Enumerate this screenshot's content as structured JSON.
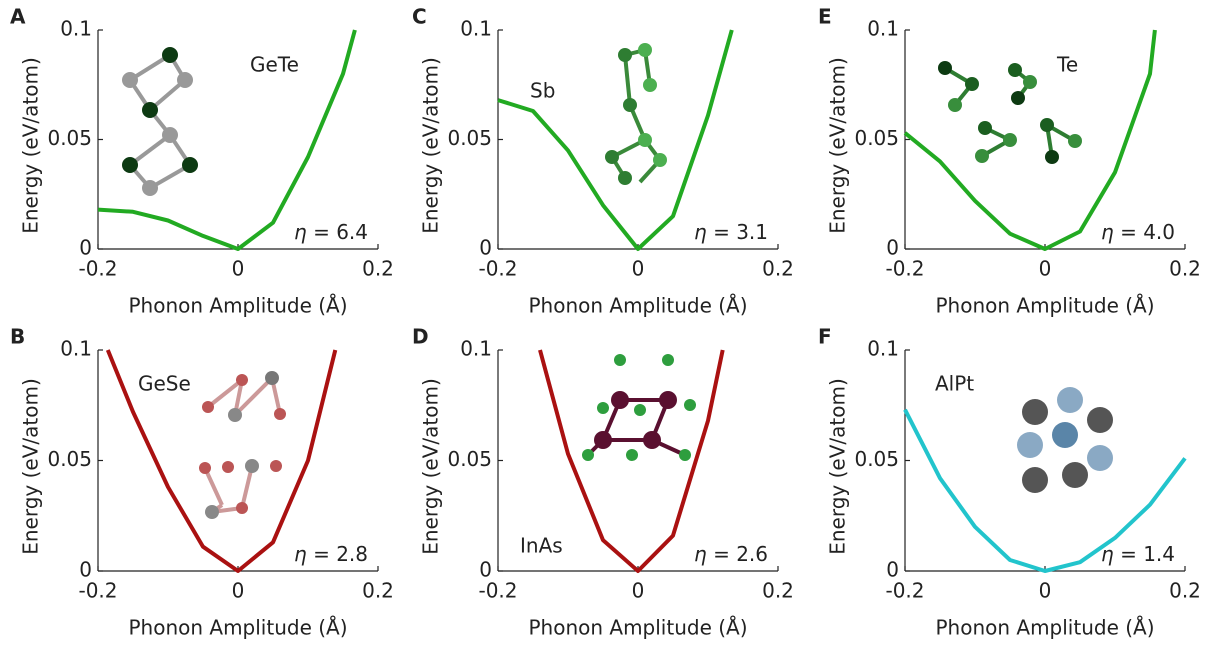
{
  "chart_data": [
    {
      "type": "line",
      "label": "A",
      "title": "GeTe",
      "annotation": "η = 6.4",
      "xlabel": "Phonon Amplitude (Å)",
      "ylabel": "Energy (eV/atom)",
      "color": "#22aa22",
      "x": [
        -0.2,
        -0.15,
        -0.1,
        -0.05,
        0,
        0.05,
        0.1,
        0.15,
        0.167
      ],
      "values": [
        0.018,
        0.017,
        0.013,
        0.006,
        0,
        0.012,
        0.042,
        0.08,
        0.1
      ],
      "xlim": [
        -0.2,
        0.2
      ],
      "ylim": [
        0,
        0.1
      ],
      "xticks": [
        -0.2,
        0,
        0.2
      ],
      "yticks": [
        0,
        0.05,
        0.1
      ]
    },
    {
      "type": "line",
      "label": "C",
      "title": "Sb",
      "annotation": "η = 3.1",
      "xlabel": "Phonon Amplitude (Å)",
      "ylabel": "Energy (eV/atom)",
      "color": "#22aa22",
      "x": [
        -0.2,
        -0.15,
        -0.1,
        -0.05,
        0,
        0.05,
        0.1,
        0.134
      ],
      "values": [
        0.068,
        0.063,
        0.045,
        0.02,
        0,
        0.015,
        0.061,
        0.1
      ],
      "xlim": [
        -0.2,
        0.2
      ],
      "ylim": [
        0,
        0.1
      ],
      "xticks": [
        -0.2,
        0,
        0.2
      ],
      "yticks": [
        0,
        0.05,
        0.1
      ]
    },
    {
      "type": "line",
      "label": "E",
      "title": "Te",
      "annotation": "η = 4.0",
      "xlabel": "Phonon Amplitude (Å)",
      "ylabel": "Energy (eV/atom)",
      "color": "#22aa22",
      "x": [
        -0.2,
        -0.15,
        -0.1,
        -0.05,
        0,
        0.05,
        0.1,
        0.15,
        0.157
      ],
      "values": [
        0.053,
        0.04,
        0.022,
        0.007,
        0,
        0.008,
        0.035,
        0.08,
        0.1
      ],
      "xlim": [
        -0.2,
        0.2
      ],
      "ylim": [
        0,
        0.1
      ],
      "xticks": [
        -0.2,
        0,
        0.2
      ],
      "yticks": [
        0,
        0.05,
        0.1
      ]
    },
    {
      "type": "line",
      "label": "B",
      "title": "GeSe",
      "annotation": "η = 2.8",
      "xlabel": "Phonon Amplitude (Å)",
      "ylabel": "Energy (eV/atom)",
      "color": "#aa1111",
      "x": [
        -0.186,
        -0.15,
        -0.1,
        -0.05,
        0,
        0.05,
        0.1,
        0.139
      ],
      "values": [
        0.1,
        0.072,
        0.038,
        0.011,
        0,
        0.013,
        0.05,
        0.1
      ],
      "xlim": [
        -0.2,
        0.2
      ],
      "ylim": [
        0,
        0.1
      ],
      "xticks": [
        -0.2,
        0,
        0.2
      ],
      "yticks": [
        0,
        0.05,
        0.1
      ]
    },
    {
      "type": "line",
      "label": "D",
      "title": "InAs",
      "annotation": "η = 2.6",
      "xlabel": "Phonon Amplitude (Å)",
      "ylabel": "Energy (eV/atom)",
      "color": "#aa1111",
      "x": [
        -0.14,
        -0.1,
        -0.05,
        0,
        0.05,
        0.1,
        0.121
      ],
      "values": [
        0.1,
        0.053,
        0.014,
        0,
        0.016,
        0.068,
        0.1
      ],
      "xlim": [
        -0.2,
        0.2
      ],
      "ylim": [
        0,
        0.1
      ],
      "xticks": [
        -0.2,
        0,
        0.2
      ],
      "yticks": [
        0,
        0.05,
        0.1
      ]
    },
    {
      "type": "line",
      "label": "F",
      "title": "AlPt",
      "annotation": "η = 1.4",
      "xlabel": "Phonon Amplitude (Å)",
      "ylabel": "Energy (eV/atom)",
      "color": "#22c4cc",
      "x": [
        -0.2,
        -0.15,
        -0.1,
        -0.05,
        0,
        0.05,
        0.1,
        0.15,
        0.2
      ],
      "values": [
        0.073,
        0.042,
        0.02,
        0.005,
        0,
        0.004,
        0.015,
        0.03,
        0.051
      ],
      "xlim": [
        -0.2,
        0.2
      ],
      "ylim": [
        0,
        0.1
      ],
      "xticks": [
        -0.2,
        0,
        0.2
      ],
      "yticks": [
        0,
        0.05,
        0.1
      ]
    }
  ]
}
